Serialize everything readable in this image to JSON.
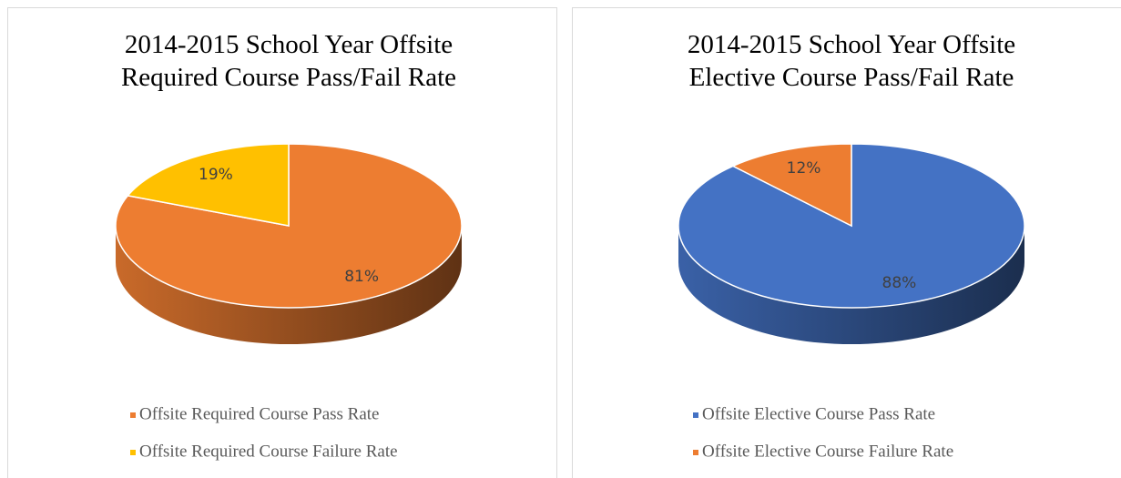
{
  "chart_data": [
    {
      "type": "pie3d",
      "title": [
        "2014-2015 School Year Offsite",
        "Required Course Pass/Fail Rate"
      ],
      "categories": [
        "Offsite Required Course Pass Rate",
        "Offsite Required Course Failure Rate"
      ],
      "values": [
        81,
        19
      ],
      "value_labels": [
        "81%",
        "19%"
      ],
      "colors": [
        "#ed7d31",
        "#ffc000"
      ],
      "legend": "bottom"
    },
    {
      "type": "pie3d",
      "title": [
        "2014-2015 School Year Offsite",
        "Elective Course Pass/Fail Rate"
      ],
      "categories": [
        "Offsite Elective Course Pass Rate",
        "Offsite Elective Course Failure Rate"
      ],
      "values": [
        88,
        12
      ],
      "value_labels": [
        "88%",
        "12%"
      ],
      "colors": [
        "#4472c4",
        "#ed7d31"
      ],
      "legend": "bottom"
    }
  ]
}
